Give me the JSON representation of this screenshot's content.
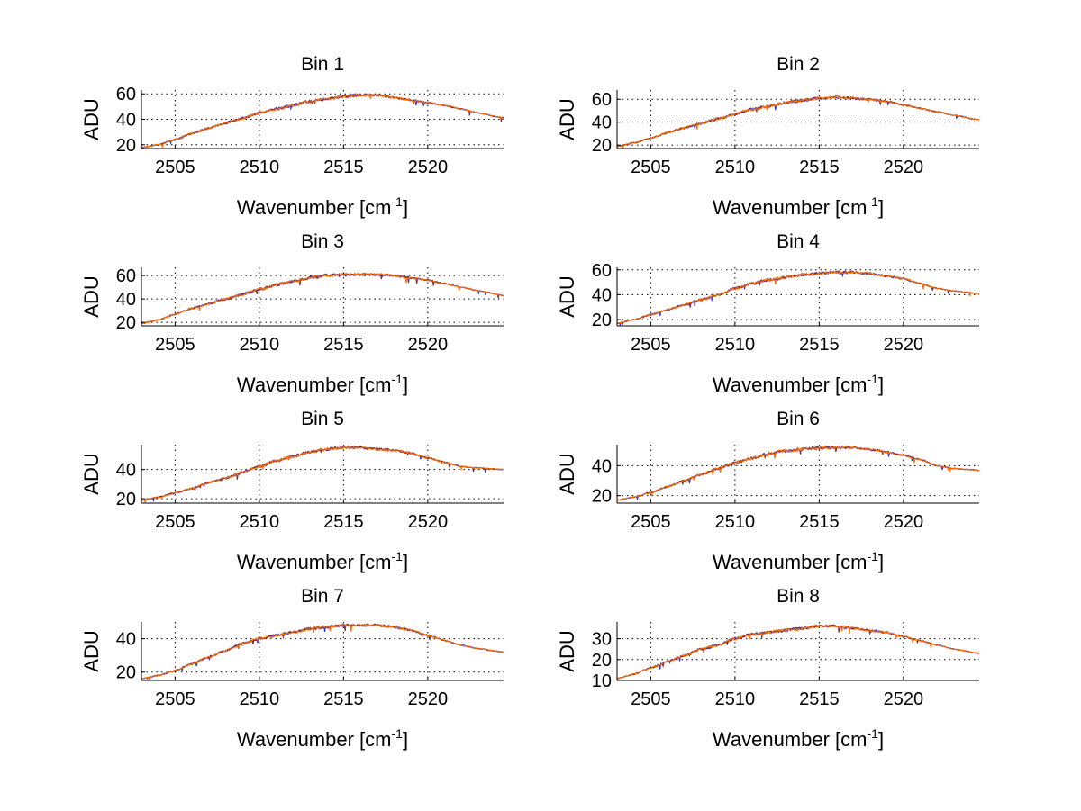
{
  "colors": {
    "background": "#ffffff",
    "axes": "#000000",
    "grid": "#000000",
    "trace_front": "#ff6a00",
    "trace_back": "#2a2ad0",
    "trace_mid": "#7a2a2a"
  },
  "chart_data": [
    {
      "type": "line",
      "title": "Bin 1",
      "xlabel_main": "Wavenumber [cm",
      "xlabel_sup": "-1",
      "xlabel_end": "]",
      "ylabel": "ADU",
      "xlim": [
        2503,
        2524.5
      ],
      "ylim": [
        17,
        63
      ],
      "xticks": [
        2505,
        2510,
        2515,
        2520
      ],
      "yticks": [
        20,
        40,
        60
      ],
      "grid": true,
      "x": [
        2503,
        2504,
        2505,
        2506,
        2507,
        2508,
        2509,
        2510,
        2511,
        2512,
        2513,
        2514,
        2515,
        2516,
        2517,
        2518,
        2519,
        2520,
        2521,
        2522,
        2523,
        2524.5
      ],
      "y": [
        18,
        20,
        24,
        29,
        33,
        37,
        41,
        45,
        48,
        51,
        54,
        56,
        58,
        59,
        59,
        57,
        55,
        53,
        51,
        48,
        45,
        41
      ]
    },
    {
      "type": "line",
      "title": "Bin 2",
      "xlabel_main": "Wavenumber [cm",
      "xlabel_sup": "-1",
      "xlabel_end": "]",
      "ylabel": "ADU",
      "xlim": [
        2503,
        2524.5
      ],
      "ylim": [
        17,
        68
      ],
      "xticks": [
        2505,
        2510,
        2515,
        2520
      ],
      "yticks": [
        20,
        40,
        60
      ],
      "grid": true,
      "x": [
        2503,
        2504,
        2505,
        2506,
        2507,
        2508,
        2509,
        2510,
        2511,
        2512,
        2513,
        2514,
        2515,
        2516,
        2517,
        2518,
        2519,
        2520,
        2521,
        2522,
        2523,
        2524.5
      ],
      "y": [
        19,
        22,
        26,
        31,
        35,
        39,
        43,
        47,
        51,
        54,
        57,
        59,
        61,
        62,
        61,
        60,
        58,
        55,
        52,
        49,
        46,
        42
      ]
    },
    {
      "type": "line",
      "title": "Bin 3",
      "xlabel_main": "Wavenumber [cm",
      "xlabel_sup": "-1",
      "xlabel_end": "]",
      "ylabel": "ADU",
      "xlim": [
        2503,
        2524.5
      ],
      "ylim": [
        17,
        67
      ],
      "xticks": [
        2505,
        2510,
        2515,
        2520
      ],
      "yticks": [
        20,
        40,
        60
      ],
      "grid": true,
      "x": [
        2503,
        2504,
        2505,
        2506,
        2507,
        2508,
        2509,
        2510,
        2511,
        2512,
        2513,
        2514,
        2515,
        2516,
        2517,
        2518,
        2519,
        2520,
        2521,
        2522,
        2523,
        2524.5
      ],
      "y": [
        19,
        22,
        27,
        32,
        36,
        40,
        44,
        48,
        52,
        55,
        58,
        60,
        61,
        61,
        61,
        60,
        58,
        56,
        53,
        50,
        47,
        43
      ]
    },
    {
      "type": "line",
      "title": "Bin 4",
      "xlabel_main": "Wavenumber [cm",
      "xlabel_sup": "-1",
      "xlabel_end": "]",
      "ylabel": "ADU",
      "xlim": [
        2503,
        2524.5
      ],
      "ylim": [
        15,
        62
      ],
      "xticks": [
        2505,
        2510,
        2515,
        2520
      ],
      "yticks": [
        20,
        40,
        60
      ],
      "grid": true,
      "x": [
        2503,
        2504,
        2505,
        2506,
        2507,
        2508,
        2509,
        2510,
        2511,
        2512,
        2513,
        2514,
        2515,
        2516,
        2517,
        2518,
        2519,
        2520,
        2521,
        2522,
        2523,
        2524.5
      ],
      "y": [
        17,
        20,
        24,
        28,
        32,
        36,
        40,
        45,
        49,
        52,
        54,
        56,
        57,
        58,
        58,
        57,
        55,
        53,
        49,
        45,
        43,
        41
      ]
    },
    {
      "type": "line",
      "title": "Bin 5",
      "xlabel_main": "Wavenumber [cm",
      "xlabel_sup": "-1",
      "xlabel_end": "]",
      "ylabel": "ADU",
      "xlim": [
        2503,
        2524.5
      ],
      "ylim": [
        17,
        57
      ],
      "xticks": [
        2505,
        2510,
        2515,
        2520
      ],
      "yticks": [
        20,
        40
      ],
      "grid": true,
      "x": [
        2503,
        2504,
        2505,
        2506,
        2507,
        2508,
        2509,
        2510,
        2511,
        2512,
        2513,
        2514,
        2515,
        2516,
        2517,
        2518,
        2519,
        2520,
        2521,
        2522,
        2523,
        2524.5
      ],
      "y": [
        19,
        21,
        24,
        27,
        31,
        34,
        38,
        42,
        46,
        49,
        52,
        54,
        55,
        55,
        54,
        53,
        51,
        48,
        45,
        42,
        41,
        40
      ]
    },
    {
      "type": "line",
      "title": "Bin 6",
      "xlabel_main": "Wavenumber [cm",
      "xlabel_sup": "-1",
      "xlabel_end": "]",
      "ylabel": "ADU",
      "xlim": [
        2503,
        2524.5
      ],
      "ylim": [
        15,
        54
      ],
      "xticks": [
        2505,
        2510,
        2515,
        2520
      ],
      "yticks": [
        20,
        40
      ],
      "grid": true,
      "x": [
        2503,
        2504,
        2505,
        2506,
        2507,
        2508,
        2509,
        2510,
        2511,
        2512,
        2513,
        2514,
        2515,
        2516,
        2517,
        2518,
        2519,
        2520,
        2521,
        2522,
        2523,
        2524.5
      ],
      "y": [
        17,
        19,
        22,
        26,
        30,
        34,
        38,
        42,
        45,
        48,
        50,
        51,
        52,
        52,
        52,
        51,
        49,
        47,
        44,
        40,
        38,
        37
      ]
    },
    {
      "type": "line",
      "title": "Bin 7",
      "xlabel_main": "Wavenumber [cm",
      "xlabel_sup": "-1",
      "xlabel_end": "]",
      "ylabel": "ADU",
      "xlim": [
        2503,
        2524.5
      ],
      "ylim": [
        15,
        50
      ],
      "xticks": [
        2505,
        2510,
        2515,
        2520
      ],
      "yticks": [
        20,
        40
      ],
      "grid": true,
      "x": [
        2503,
        2504,
        2505,
        2506,
        2507,
        2508,
        2509,
        2510,
        2511,
        2512,
        2513,
        2514,
        2515,
        2516,
        2517,
        2518,
        2519,
        2520,
        2521,
        2522,
        2523,
        2524.5
      ],
      "y": [
        16,
        18,
        21,
        25,
        29,
        33,
        37,
        40,
        42,
        44,
        46,
        47,
        48,
        48,
        48,
        47,
        45,
        42,
        39,
        36,
        34,
        32
      ]
    },
    {
      "type": "line",
      "title": "Bin 8",
      "xlabel_main": "Wavenumber [cm",
      "xlabel_sup": "-1",
      "xlabel_end": "]",
      "ylabel": "ADU",
      "xlim": [
        2503,
        2524.5
      ],
      "ylim": [
        10,
        38
      ],
      "xticks": [
        2505,
        2510,
        2515,
        2520
      ],
      "yticks": [
        10,
        20,
        30
      ],
      "grid": true,
      "x": [
        2503,
        2504,
        2505,
        2506,
        2507,
        2508,
        2509,
        2510,
        2511,
        2512,
        2513,
        2514,
        2515,
        2516,
        2517,
        2518,
        2519,
        2520,
        2521,
        2522,
        2523,
        2524.5
      ],
      "y": [
        11,
        13,
        16,
        19,
        22,
        25,
        27,
        30,
        32,
        33,
        34,
        35,
        36,
        36,
        35,
        34,
        33,
        31,
        29,
        27,
        25,
        23
      ]
    }
  ]
}
